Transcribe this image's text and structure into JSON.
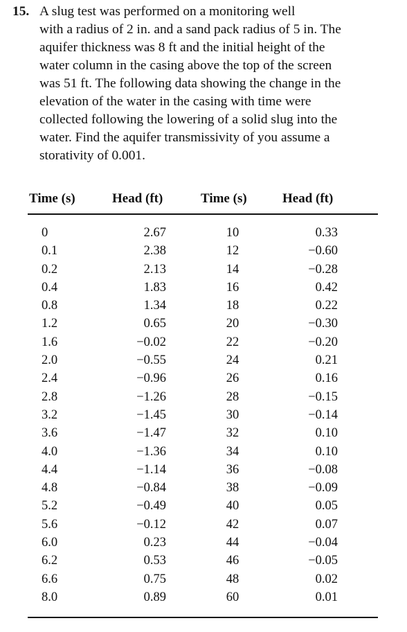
{
  "problem": {
    "number": "15.",
    "lines": [
      "A slug test was performed on a monitoring well",
      "with a radius of 2 in. and a sand pack radius of 5 in. The",
      "aquifer thickness was 8 ft and the initial height of the",
      "water column in the casing above the top of the screen",
      "was 51 ft. The following data showing the change in the",
      "elevation of the water in the casing with time were",
      "collected following the lowering of a solid slug into the",
      "water. Find the aquifer transmissivity of you assume a",
      "storativity of 0.001."
    ]
  },
  "table": {
    "headers": [
      "Time (s)",
      "Head (ft)",
      "Time (s)",
      "Head (ft)"
    ],
    "rows": [
      [
        "0",
        "2.67",
        "10",
        "0.33"
      ],
      [
        "0.1",
        "2.38",
        "12",
        "−0.60"
      ],
      [
        "0.2",
        "2.13",
        "14",
        "−0.28"
      ],
      [
        "0.4",
        "1.83",
        "16",
        "0.42"
      ],
      [
        "0.8",
        "1.34",
        "18",
        "0.22"
      ],
      [
        "1.2",
        "0.65",
        "20",
        "−0.30"
      ],
      [
        "1.6",
        "−0.02",
        "22",
        "−0.20"
      ],
      [
        "2.0",
        "−0.55",
        "24",
        "0.21"
      ],
      [
        "2.4",
        "−0.96",
        "26",
        "0.16"
      ],
      [
        "2.8",
        "−1.26",
        "28",
        "−0.15"
      ],
      [
        "3.2",
        "−1.45",
        "30",
        "−0.14"
      ],
      [
        "3.6",
        "−1.47",
        "32",
        "0.10"
      ],
      [
        "4.0",
        "−1.36",
        "34",
        "0.10"
      ],
      [
        "4.4",
        "−1.14",
        "36",
        "−0.08"
      ],
      [
        "4.8",
        "−0.84",
        "38",
        "−0.09"
      ],
      [
        "5.2",
        "−0.49",
        "40",
        "0.05"
      ],
      [
        "5.6",
        "−0.12",
        "42",
        "0.07"
      ],
      [
        "6.0",
        "0.23",
        "44",
        "−0.04"
      ],
      [
        "6.2",
        "0.53",
        "46",
        "−0.05"
      ],
      [
        "6.6",
        "0.75",
        "48",
        "0.02"
      ],
      [
        "8.0",
        "0.89",
        "60",
        "0.01"
      ]
    ]
  }
}
